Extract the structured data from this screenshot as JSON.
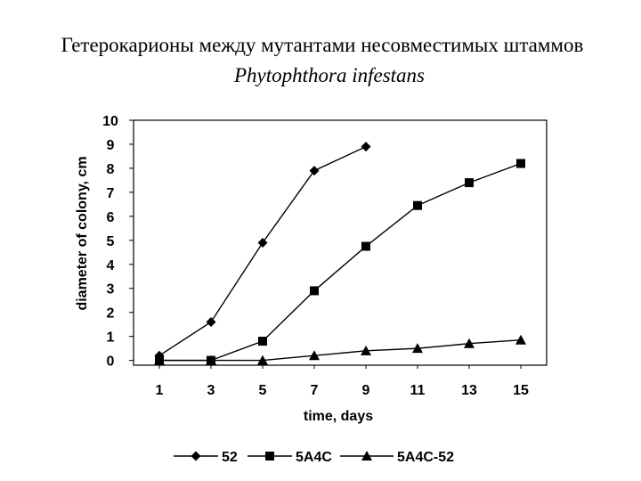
{
  "chart_data": {
    "type": "line",
    "title": "Гетерокарионы между мутантами несовместимых штаммов",
    "title_species": "Phytophthora infestans",
    "x_label": "time, days",
    "y_label": "diameter of colony, cm",
    "xlim": [
      0,
      16
    ],
    "xticks": [
      1,
      3,
      5,
      7,
      9,
      11,
      13,
      15
    ],
    "ylim": [
      -0.2,
      10
    ],
    "yticks": [
      0,
      1,
      2,
      3,
      4,
      5,
      6,
      7,
      8,
      9,
      10
    ],
    "legend": "bottom",
    "series": [
      {
        "name": "52",
        "color": "#000000",
        "marker": "diamond",
        "x": [
          1,
          3,
          5,
          7,
          9
        ],
        "values": [
          0.2,
          1.6,
          4.9,
          7.9,
          8.9
        ]
      },
      {
        "name": "5A4C",
        "color": "#000000",
        "marker": "square",
        "x": [
          1,
          3,
          5,
          7,
          9,
          11,
          13,
          15
        ],
        "values": [
          0,
          0,
          0.8,
          2.9,
          4.75,
          6.45,
          7.4,
          8.2
        ]
      },
      {
        "name": "5A4C-52",
        "color": "#000000",
        "marker": "triangle",
        "x": [
          1,
          3,
          5,
          7,
          9,
          11,
          13,
          15
        ],
        "values": [
          0,
          0,
          0,
          0.2,
          0.4,
          0.5,
          0.7,
          0.85
        ]
      }
    ]
  }
}
